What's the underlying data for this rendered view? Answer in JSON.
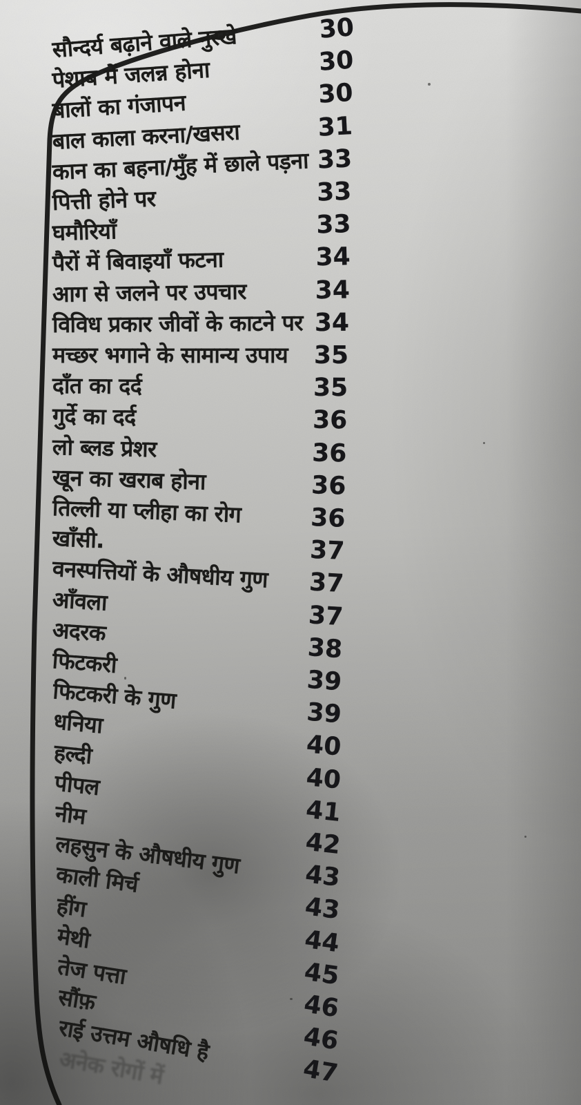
{
  "page": {
    "description_label": "photographed book page, Hindi table of contents",
    "page_number_range": "30-47"
  },
  "colors": {
    "paper": "#c7c7c4",
    "ink": "#1b1b19",
    "border": "#111110"
  },
  "toc": {
    "rows": [
      {
        "label": "सौन्दर्य बढ़ाने वाले नुस्खे",
        "page": "30",
        "faded": false
      },
      {
        "label": "पेशाब में जलन्न होना",
        "page": "30",
        "faded": false
      },
      {
        "label": "बालों का गंजापन",
        "page": "30",
        "faded": false
      },
      {
        "label": "बाल काला करना/खसरा",
        "page": "31",
        "faded": false
      },
      {
        "label": "कान का बहना/मुँह में छाले पड़ना",
        "page": "33",
        "faded": false
      },
      {
        "label": "पित्ती होने पर",
        "page": "33",
        "faded": false
      },
      {
        "label": "घमौरियाँ",
        "page": "33",
        "faded": false
      },
      {
        "label": "पैरों में बिवाइयाँ फटना",
        "page": "34",
        "faded": false
      },
      {
        "label": "आग से जलने पर उपचार",
        "page": "34",
        "faded": false
      },
      {
        "label": "विविध प्रकार जीवों के काटने पर",
        "page": "34",
        "faded": false
      },
      {
        "label": "मच्छर भगाने के सामान्य उपाय",
        "page": "35",
        "faded": false
      },
      {
        "label": "दाँत का दर्द",
        "page": "35",
        "faded": false
      },
      {
        "label": "गुर्दे का दर्द",
        "page": "36",
        "faded": false
      },
      {
        "label": "लो ब्लड प्रेशर",
        "page": "36",
        "faded": false
      },
      {
        "label": "खून का खराब होना",
        "page": "36",
        "faded": false
      },
      {
        "label": "तिल्ली या प्लीहा का रोग",
        "page": "36",
        "faded": false
      },
      {
        "label": "खाँसी.",
        "page": "37",
        "faded": false
      },
      {
        "label": "वनस्पत्तियों के औषधीय गुण",
        "page": "37",
        "faded": false
      },
      {
        "label": "आँवला",
        "page": "37",
        "faded": false
      },
      {
        "label": "अदरक",
        "page": "38",
        "faded": false
      },
      {
        "label": "फिटकरी",
        "page": "39",
        "faded": false
      },
      {
        "label": "फिटकरी के गुण",
        "page": "39",
        "faded": false
      },
      {
        "label": "धनिया",
        "page": "40",
        "faded": false
      },
      {
        "label": "हल्दी",
        "page": "40",
        "faded": false
      },
      {
        "label": "पीपल",
        "page": "41",
        "faded": false
      },
      {
        "label": "नीम",
        "page": "42",
        "faded": false
      },
      {
        "label": "लहसुन के औषधीय गुण",
        "page": "43",
        "faded": false
      },
      {
        "label": "काली मिर्च",
        "page": "43",
        "faded": false
      },
      {
        "label": "हींग",
        "page": "44",
        "faded": false
      },
      {
        "label": "मेथी",
        "page": "45",
        "faded": false
      },
      {
        "label": "तेज पत्ता",
        "page": "46",
        "faded": false
      },
      {
        "label": "सौंफ़",
        "page": "46",
        "faded": false
      },
      {
        "label": "राई उत्तम औषधि है",
        "page": "47",
        "faded": false
      },
      {
        "label": "अनेक रोगों में",
        "page": "",
        "faded": true
      }
    ]
  }
}
